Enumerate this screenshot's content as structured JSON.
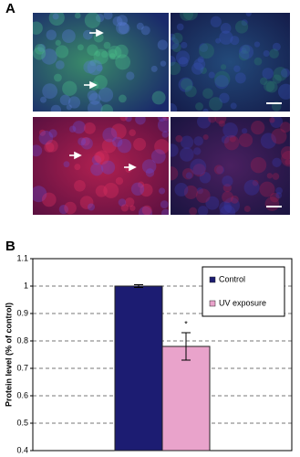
{
  "panels": {
    "a": "A",
    "b": "B"
  },
  "chart_data": {
    "type": "bar",
    "ylabel": "Protein level (% of control)",
    "categories": [
      null
    ],
    "series": [
      {
        "name": "Control",
        "color": "#1c1c72",
        "values": [
          1.0
        ],
        "errors": [
          0.005
        ]
      },
      {
        "name": "UV exposure",
        "color": "#e9a3cb",
        "values": [
          0.78
        ],
        "errors": [
          0.05
        ]
      }
    ],
    "annotation": "*",
    "ylim": [
      0.4,
      1.1
    ],
    "yticks": [
      0.4,
      0.5,
      0.6,
      0.7,
      0.8,
      0.9,
      1,
      1.1
    ],
    "grid": true,
    "legend": "upper right"
  }
}
